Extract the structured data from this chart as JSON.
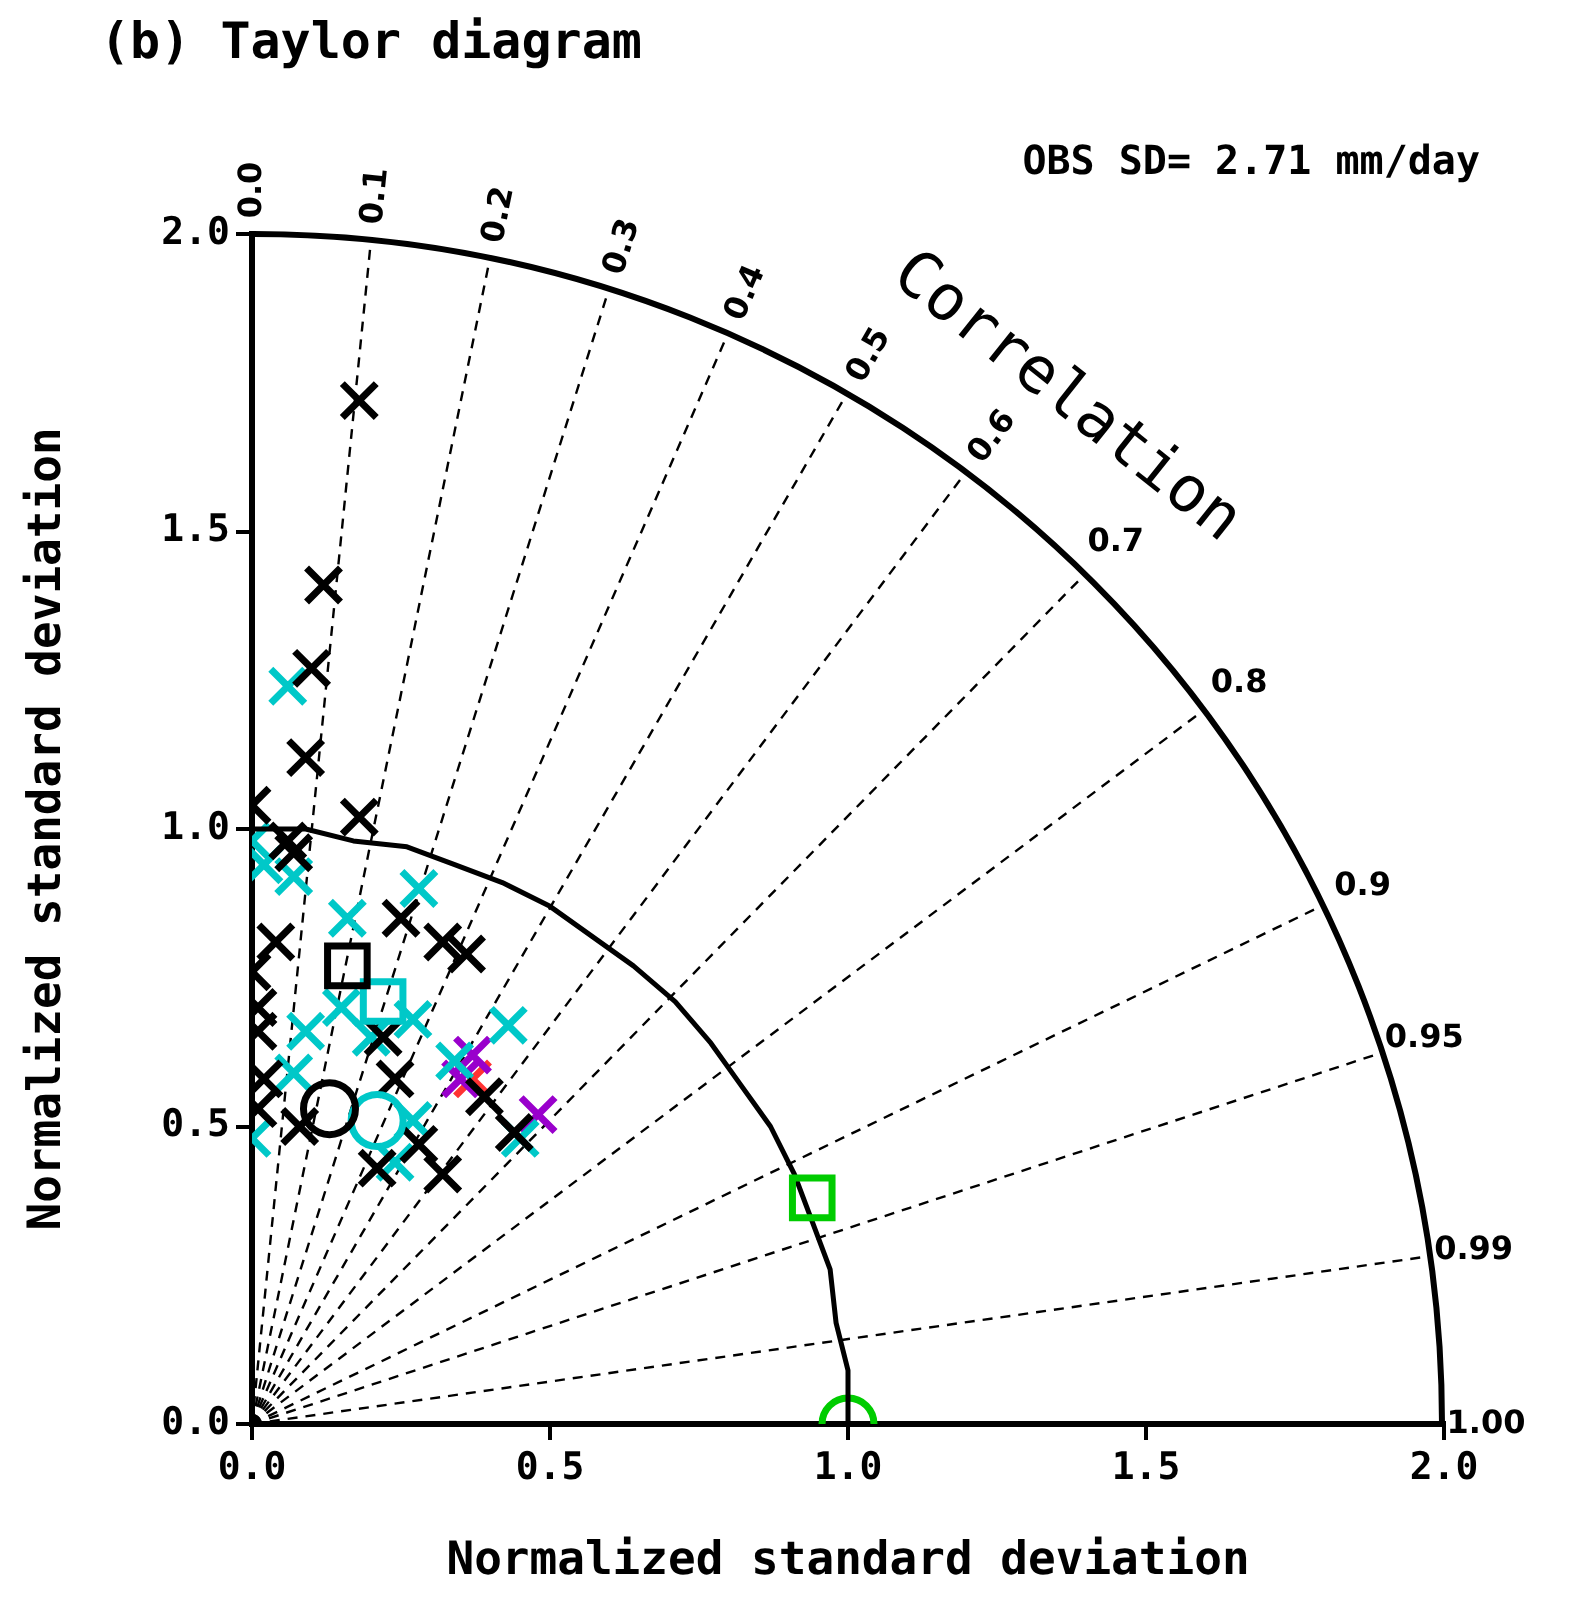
{
  "chart_data": {
    "type": "scatter",
    "title": "(b) Taylor diagram",
    "xlabel": "Normalized standard deviation",
    "ylabel": "Normalized standard deviation",
    "xlim": [
      0,
      2
    ],
    "ylim": [
      0,
      2
    ],
    "xticks": [
      {
        "value": 0,
        "label": "0.0"
      },
      0.5,
      {
        "value": 1,
        "label": "1.0"
      },
      1.5,
      {
        "value": 2,
        "label": "2.0"
      }
    ],
    "yticks": [
      {
        "value": 0,
        "label": "0.0"
      },
      0.5,
      {
        "value": 1,
        "label": "1.0"
      },
      1.5,
      {
        "value": 2,
        "label": "2.0"
      }
    ],
    "legend": false,
    "annotations": [
      "OBS SD= 2.71 mm/day",
      "Correlation",
      "0.0",
      "0.1",
      "0.2",
      "0.3",
      "0.4",
      "0.5",
      "0.6",
      "0.7",
      "0.8",
      "0.9",
      "0.95",
      "0.99",
      "1.00"
    ],
    "series": [
      {
        "marker": "cross",
        "color": "#000000",
        "x": [
          0.18,
          0.12,
          0.1,
          0.09,
          0.18,
          0.0,
          0.06,
          0.07,
          0.04,
          0.0,
          0.01,
          0.01,
          0.02,
          0.01,
          0.08,
          0.25,
          0.32,
          0.36,
          0.22,
          0.24,
          0.28,
          0.32,
          0.39,
          0.44,
          0.21
        ],
        "values": [
          1.72,
          1.41,
          1.27,
          1.12,
          1.02,
          1.04,
          0.98,
          0.96,
          0.81,
          0.76,
          0.7,
          0.66,
          0.58,
          0.53,
          0.5,
          0.85,
          0.81,
          0.79,
          0.65,
          0.58,
          0.47,
          0.42,
          0.55,
          0.49,
          0.43
        ]
      },
      {
        "marker": "cross",
        "color": "#00c8c8",
        "x": [
          0.06,
          0.0,
          0.02,
          0.07,
          0.28,
          0.16,
          0.09,
          0.07,
          0.0,
          0.27,
          0.15,
          0.43,
          0.34,
          0.27,
          0.24,
          0.45,
          0.2
        ],
        "values": [
          1.24,
          0.98,
          0.94,
          0.92,
          0.9,
          0.85,
          0.66,
          0.59,
          0.48,
          0.68,
          0.7,
          0.67,
          0.61,
          0.51,
          0.44,
          0.48,
          0.65
        ]
      },
      {
        "marker": "cross",
        "color": "#9900cc",
        "x": [
          0.37,
          0.35,
          0.48
        ],
        "values": [
          0.62,
          0.58,
          0.52
        ]
      },
      {
        "marker": "cross",
        "color": "#ff3333",
        "x": [
          0.37
        ],
        "values": [
          0.58
        ]
      },
      {
        "marker": "square",
        "color": "#000000",
        "x": [
          0.16
        ],
        "values": [
          0.77
        ]
      },
      {
        "marker": "square",
        "color": "#00c8c8",
        "x": [
          0.22
        ],
        "values": [
          0.71
        ]
      },
      {
        "marker": "circle",
        "color": "#000000",
        "x": [
          0.13
        ],
        "values": [
          0.53
        ]
      },
      {
        "marker": "circle",
        "color": "#00c8c8",
        "x": [
          0.21
        ],
        "values": [
          0.51
        ]
      },
      {
        "marker": "square",
        "color": "#00cc00",
        "x": [
          0.94
        ],
        "values": [
          0.38
        ]
      },
      {
        "type": "line",
        "marker": "none",
        "line_style": "solid",
        "color": "#000000",
        "x": [
          0.0,
          0.09,
          0.17,
          0.26,
          0.34,
          0.42,
          0.5,
          0.57,
          0.64,
          0.71,
          0.77,
          0.82,
          0.87,
          0.91,
          0.94,
          0.97,
          0.98,
          1.0,
          1.0
        ],
        "values": [
          1.0,
          1.0,
          0.98,
          0.97,
          0.94,
          0.91,
          0.87,
          0.82,
          0.77,
          0.71,
          0.64,
          0.57,
          0.5,
          0.42,
          0.34,
          0.26,
          0.17,
          0.09,
          0.0
        ]
      },
      {
        "marker": "circle",
        "color": "#00cc00",
        "x": [
          1.0
        ],
        "values": [
          0.0
        ]
      }
    ]
  }
}
